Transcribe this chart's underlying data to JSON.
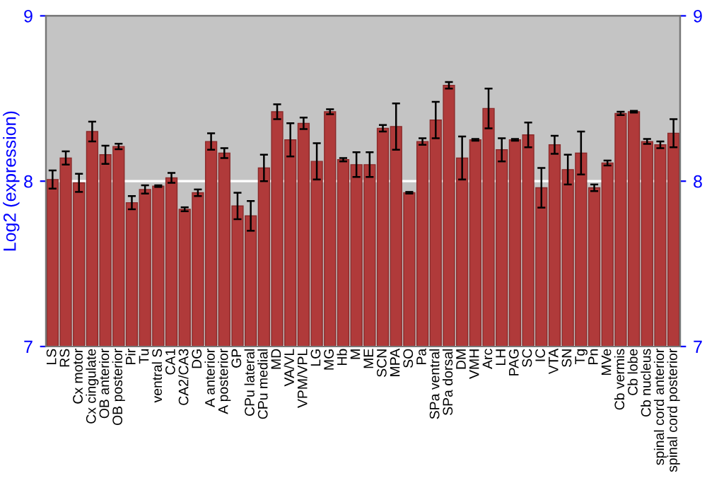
{
  "chart_data": {
    "type": "bar",
    "ylabel": "Log2 (expression)",
    "categories": [
      "LS",
      "RS",
      "Cx motor",
      "Cx cingulate",
      "OB anterior",
      "OB posterior",
      "Pir",
      "Tu",
      "ventral S",
      "CA1",
      "CA2/CA3",
      "DG",
      "A anterior",
      "A posterior",
      "GP",
      "CPu lateral",
      "CPu medial",
      "MD",
      "VA/VL",
      "VPM/VPL",
      "LG",
      "MG",
      "Hb",
      "M",
      "ME",
      "SCN",
      "MPA",
      "SO",
      "Pa",
      "SPa ventral",
      "SPa dorsal",
      "DM",
      "VMH",
      "Arc",
      "LH",
      "PAG",
      "SC",
      "IC",
      "VTA",
      "SN",
      "Tg",
      "Pn",
      "MVe",
      "Cb vermis",
      "Cb lobe",
      "Cb nucleus",
      "spinal cord anterior",
      "spinal cord posterior"
    ],
    "values": [
      8.01,
      8.14,
      7.99,
      8.3,
      8.16,
      8.21,
      7.87,
      7.95,
      7.97,
      8.02,
      7.83,
      7.93,
      8.24,
      8.17,
      7.85,
      7.79,
      8.08,
      8.42,
      8.25,
      8.35,
      8.12,
      8.42,
      8.13,
      8.1,
      8.1,
      8.32,
      8.33,
      7.93,
      8.24,
      8.37,
      8.58,
      8.14,
      8.25,
      8.44,
      8.19,
      8.25,
      8.28,
      7.96,
      8.22,
      8.07,
      8.17,
      7.96,
      8.11,
      8.41,
      8.42,
      8.24,
      8.22,
      8.29
    ],
    "errors": [
      0.055,
      0.04,
      0.055,
      0.06,
      0.055,
      0.017,
      0.04,
      0.025,
      0.005,
      0.03,
      0.012,
      0.02,
      0.05,
      0.03,
      0.08,
      0.09,
      0.08,
      0.045,
      0.1,
      0.035,
      0.11,
      0.015,
      0.01,
      0.075,
      0.075,
      0.02,
      0.14,
      0.005,
      0.02,
      0.11,
      0.02,
      0.13,
      0.005,
      0.12,
      0.07,
      0.005,
      0.075,
      0.12,
      0.055,
      0.09,
      0.13,
      0.02,
      0.015,
      0.01,
      0.005,
      0.015,
      0.02,
      0.085
    ],
    "color": "#b03a3a",
    "ylim": [
      7,
      9
    ],
    "yticks": [
      7,
      8,
      9
    ],
    "y2lim": [
      7,
      9
    ],
    "y2ticks": [
      7,
      8,
      9
    ],
    "grid": "y"
  }
}
